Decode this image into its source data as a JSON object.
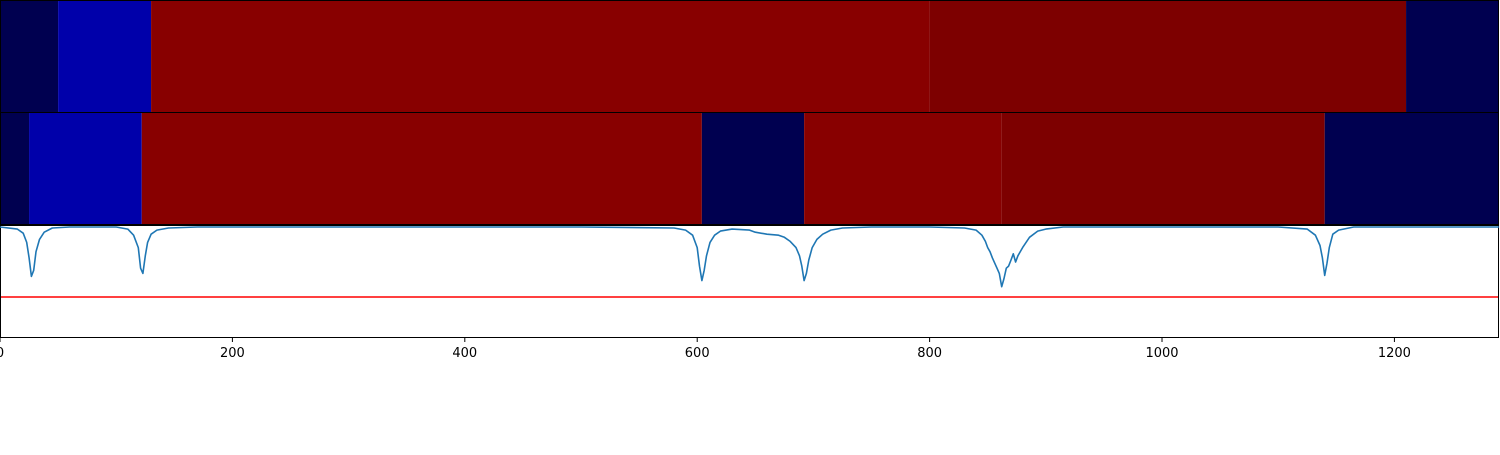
{
  "chart_data": {
    "type": "heatmap",
    "title": "",
    "xlabel": "",
    "ylabel": "",
    "xlim": [
      0,
      1290
    ],
    "x_ticks": [
      {
        "value": 0,
        "label": "0"
      },
      {
        "value": 200,
        "label": "200"
      },
      {
        "value": 400,
        "label": "400"
      },
      {
        "value": 600,
        "label": "600"
      },
      {
        "value": 800,
        "label": "800"
      },
      {
        "value": 1000,
        "label": "1000"
      },
      {
        "value": 1200,
        "label": "1200"
      }
    ],
    "segmentation_rows": [
      {
        "segments": [
          {
            "start": 0,
            "end": 50,
            "color": "#000050"
          },
          {
            "start": 50,
            "end": 130,
            "color": "#0000aa"
          },
          {
            "start": 130,
            "end": 800,
            "color": "#880000"
          },
          {
            "start": 800,
            "end": 1210,
            "color": "#7d0000"
          },
          {
            "start": 1210,
            "end": 1290,
            "color": "#000050"
          }
        ]
      },
      {
        "segments": [
          {
            "start": 0,
            "end": 25,
            "color": "#000050"
          },
          {
            "start": 25,
            "end": 122,
            "color": "#0000aa"
          },
          {
            "start": 122,
            "end": 604,
            "color": "#880000"
          },
          {
            "start": 604,
            "end": 692,
            "color": "#000050"
          },
          {
            "start": 692,
            "end": 862,
            "color": "#880000"
          },
          {
            "start": 862,
            "end": 1140,
            "color": "#7d0000"
          },
          {
            "start": 1140,
            "end": 1290,
            "color": "#000050"
          }
        ]
      }
    ],
    "line_panel": {
      "ylim": [
        0,
        1
      ],
      "signal": {
        "color": "#1f77b4",
        "x": [
          0,
          15,
          20,
          23,
          25,
          27,
          29,
          31,
          34,
          38,
          45,
          60,
          100,
          110,
          115,
          119,
          121,
          123,
          125,
          127,
          130,
          135,
          145,
          170,
          300,
          500,
          580,
          590,
          596,
          600,
          602,
          604,
          606,
          608,
          611,
          615,
          620,
          630,
          645,
          650,
          660,
          670,
          675,
          680,
          685,
          688,
          690,
          692,
          694,
          696,
          699,
          703,
          708,
          715,
          725,
          750,
          800,
          830,
          840,
          845,
          848,
          850,
          852,
          854,
          856,
          858,
          860,
          862,
          864,
          866,
          868,
          870,
          872,
          874,
          876,
          880,
          886,
          893,
          900,
          915,
          950,
          1100,
          1125,
          1132,
          1136,
          1138,
          1140,
          1142,
          1144,
          1147,
          1152,
          1165,
          1290
        ],
        "y": [
          1.0,
          0.98,
          0.94,
          0.85,
          0.7,
          0.52,
          0.58,
          0.76,
          0.88,
          0.95,
          0.99,
          1.0,
          1.0,
          0.98,
          0.92,
          0.8,
          0.6,
          0.55,
          0.72,
          0.85,
          0.93,
          0.97,
          0.99,
          1.0,
          1.0,
          1.0,
          0.99,
          0.97,
          0.92,
          0.8,
          0.62,
          0.48,
          0.58,
          0.72,
          0.85,
          0.92,
          0.96,
          0.98,
          0.97,
          0.95,
          0.93,
          0.92,
          0.9,
          0.86,
          0.8,
          0.72,
          0.62,
          0.48,
          0.55,
          0.68,
          0.8,
          0.88,
          0.93,
          0.97,
          0.99,
          1.0,
          1.0,
          0.99,
          0.97,
          0.92,
          0.86,
          0.8,
          0.76,
          0.7,
          0.65,
          0.6,
          0.55,
          0.42,
          0.5,
          0.6,
          0.62,
          0.68,
          0.74,
          0.66,
          0.72,
          0.8,
          0.9,
          0.96,
          0.98,
          1.0,
          1.0,
          1.0,
          0.98,
          0.92,
          0.82,
          0.7,
          0.53,
          0.65,
          0.8,
          0.93,
          0.97,
          1.0,
          1.0
        ]
      },
      "threshold": {
        "value": 0.32,
        "color": "#ff0000"
      }
    }
  }
}
